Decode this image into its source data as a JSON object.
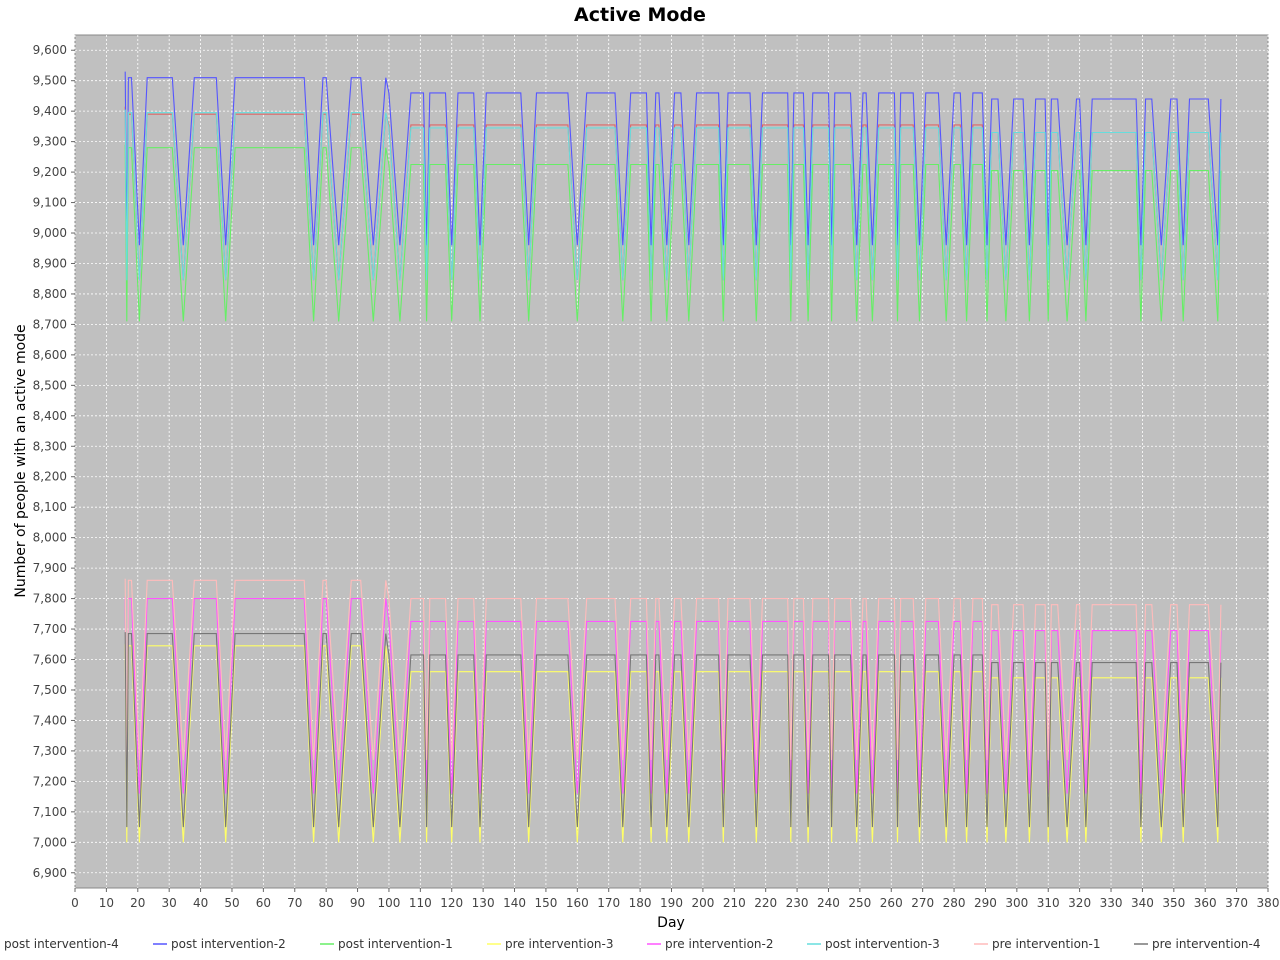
{
  "chart_data": {
    "type": "line",
    "title": "Active Mode",
    "xlabel": "Day",
    "ylabel": "Number of people with an active mode",
    "xlim": [
      0,
      380
    ],
    "ylim": [
      6850,
      9650
    ],
    "x_ticks": [
      0,
      10,
      20,
      30,
      40,
      50,
      60,
      70,
      80,
      90,
      100,
      110,
      120,
      130,
      140,
      150,
      160,
      170,
      180,
      190,
      200,
      210,
      220,
      230,
      240,
      250,
      260,
      270,
      280,
      290,
      300,
      310,
      320,
      330,
      340,
      350,
      360,
      370,
      380
    ],
    "x_tick_labels": [
      "0",
      "10",
      "20",
      "30",
      "40",
      "50",
      "60",
      "70",
      "80",
      "90",
      "100",
      "110",
      "120",
      "130",
      "140",
      "150",
      "160",
      "170",
      "180",
      "190",
      "200",
      "210",
      "220",
      "230",
      "240",
      "250",
      "260",
      "270",
      "280",
      "290",
      "300",
      "310",
      "320",
      "330",
      "340",
      "350",
      "360",
      "370",
      "380"
    ],
    "y_ticks": [
      6900,
      7000,
      7100,
      7200,
      7300,
      7400,
      7500,
      7600,
      7700,
      7800,
      7900,
      8000,
      8100,
      8200,
      8300,
      8400,
      8500,
      8600,
      8700,
      8800,
      8900,
      9000,
      9100,
      9200,
      9300,
      9400,
      9500,
      9600
    ],
    "y_tick_labels": [
      "6,900",
      "7,000",
      "7,100",
      "7,200",
      "7,300",
      "7,400",
      "7,500",
      "7,600",
      "7,700",
      "7,800",
      "7,900",
      "8,000",
      "8,100",
      "8,200",
      "8,300",
      "8,400",
      "8,500",
      "8,600",
      "8,700",
      "8,800",
      "8,900",
      "9,000",
      "9,100",
      "9,200",
      "9,300",
      "9,400",
      "9,500",
      "9,600"
    ],
    "grid": true,
    "legend_position": "bottom",
    "background": "#c0c0c0",
    "pattern": {
      "description_of_segments": "x ranges of the plateau (high) segments; between plateaus the series drops to its low value",
      "high_segments": [
        [
          17,
          18
        ],
        [
          23,
          31
        ],
        [
          38,
          45
        ],
        [
          51,
          73
        ],
        [
          79,
          80
        ],
        [
          88,
          91
        ],
        [
          99,
          100
        ],
        [
          107,
          111
        ],
        [
          113,
          118
        ],
        [
          122,
          127
        ],
        [
          131,
          142
        ],
        [
          147,
          157
        ],
        [
          163,
          172
        ],
        [
          177,
          182
        ],
        [
          185,
          186
        ],
        [
          191,
          193
        ],
        [
          198,
          205
        ],
        [
          208,
          215
        ],
        [
          219,
          227
        ],
        [
          229,
          232
        ],
        [
          235,
          240
        ],
        [
          242,
          247
        ],
        [
          251,
          252
        ],
        [
          256,
          261
        ],
        [
          263,
          267
        ],
        [
          271,
          275
        ],
        [
          280,
          282
        ],
        [
          286,
          289
        ],
        [
          292,
          294
        ],
        [
          299,
          302
        ],
        [
          306,
          309
        ],
        [
          311,
          313
        ],
        [
          319,
          320
        ],
        [
          324,
          338
        ],
        [
          341,
          343
        ],
        [
          349,
          351
        ],
        [
          355,
          361
        ]
      ],
      "low_days": [
        21,
        34,
        35,
        47,
        50,
        77,
        85,
        86,
        93,
        94,
        103,
        104,
        108,
        120,
        129,
        144,
        161,
        175,
        184,
        190,
        196,
        206,
        217,
        226,
        233,
        245,
        249,
        253,
        257,
        268,
        272,
        279,
        283,
        291,
        298,
        303,
        309,
        321,
        338,
        346,
        352,
        364
      ],
      "x_end": 365
    },
    "series": [
      {
        "name": "post intervention-4",
        "color": "#e06666",
        "start": 9415,
        "high": 9390,
        "high_late": 9355,
        "high_last": 9330,
        "low": 8845
      },
      {
        "name": "post intervention-2",
        "color": "#5555ff",
        "start": 9530,
        "high": 9510,
        "high_late": 9460,
        "high_last": 9440,
        "low": 8960
      },
      {
        "name": "post intervention-1",
        "color": "#66ee66",
        "start": 9290,
        "high": 9280,
        "high_late": 9225,
        "high_last": 9205,
        "low": 8710
      },
      {
        "name": "pre intervention-3",
        "color": "#ffff66",
        "start": 7650,
        "high": 7645,
        "high_late": 7560,
        "high_last": 7540,
        "low": 7000
      },
      {
        "name": "pre intervention-2",
        "color": "#ff55ff",
        "start": 7805,
        "high": 7800,
        "high_late": 7725,
        "high_last": 7695,
        "low": 7160
      },
      {
        "name": "post intervention-3",
        "color": "#66dddd",
        "start": 9405,
        "high": 9395,
        "high_late": 9345,
        "high_last": 9330,
        "low": 8845
      },
      {
        "name": "pre intervention-1",
        "color": "#ffbbbb",
        "start": 7865,
        "high": 7860,
        "high_late": 7800,
        "high_last": 7780,
        "low": 7270
      },
      {
        "name": "pre intervention-4",
        "color": "#777777",
        "start": 7690,
        "high": 7685,
        "high_late": 7615,
        "high_last": 7590,
        "low": 7050
      }
    ]
  }
}
